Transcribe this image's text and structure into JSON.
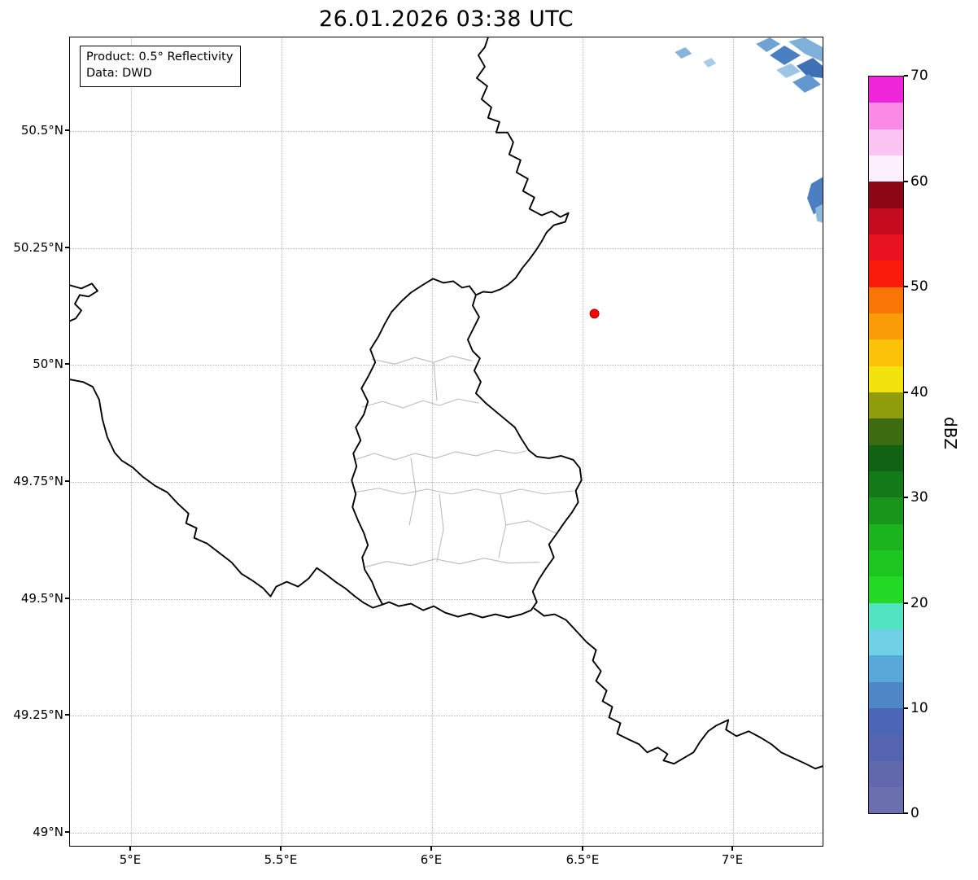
{
  "title": "26.01.2026 03:38 UTC",
  "annotation_box": {
    "product_line": "Product: 0.5° Reflectivity",
    "data_line": "Data: DWD"
  },
  "axes": {
    "x_tick_labels": [
      "5°E",
      "5.5°E",
      "6°E",
      "6.5°E",
      "7°E"
    ],
    "y_tick_labels": [
      "50.5°N",
      "50.25°N",
      "50°N",
      "49.75°N",
      "49.5°N",
      "49.25°N",
      "49°N"
    ]
  },
  "colorbar": {
    "label": "dBZ",
    "tick_labels_top_to_bottom": [
      "70",
      "60",
      "50",
      "40",
      "30",
      "20",
      "10",
      "0"
    ],
    "value_min": 0,
    "value_max": 70,
    "band_colors_bottom_to_top": [
      "#6b6fae",
      "#6168ab",
      "#5564ae",
      "#4b66b6",
      "#4e86c6",
      "#58a8da",
      "#6fd0e6",
      "#52e4c0",
      "#23d926",
      "#1ec622",
      "#1bb41e",
      "#18961b",
      "#147a17",
      "#106313",
      "#3d6c10",
      "#8f9c0c",
      "#f2e30c",
      "#fcc20a",
      "#fa9b08",
      "#f87506",
      "#fa1b0c",
      "#e81220",
      "#c40c1e",
      "#8c0616",
      "#fdeffc",
      "#fcc4f2",
      "#fb8ae6",
      "#ee25d8"
    ]
  },
  "map": {
    "national_border_color": "#000000",
    "canton_border_color": "#bcbcbc",
    "grid_color": "#b4b4b4",
    "marker_color": "#ff0000",
    "echo_palette": [
      "#3f6fb5",
      "#4a7fc0",
      "#5b93cc",
      "#6fa3d4",
      "#86b4dc",
      "#9cc4e4"
    ]
  },
  "chart_data": {
    "type": "heatmap",
    "title": "26.01.2026 03:38 UTC",
    "product": "0.5° Reflectivity",
    "data_source": "DWD",
    "x_axis": {
      "tick_labels": [
        "5°E",
        "5.5°E",
        "6°E",
        "6.5°E",
        "7°E"
      ],
      "approx_range_lon_e": [
        4.8,
        7.3
      ]
    },
    "y_axis": {
      "tick_labels": [
        "49°N",
        "49.25°N",
        "49.5°N",
        "49.75°N",
        "50°N",
        "50.25°N",
        "50.5°N"
      ],
      "approx_range_lat_n": [
        48.97,
        50.7
      ]
    },
    "colorbar": {
      "label": "dBZ",
      "range": [
        0,
        70
      ],
      "tick_step": 10,
      "n_bands": 28
    },
    "radar_site_marker": {
      "approx_lon_e": 6.54,
      "approx_lat_n": 50.11,
      "color": "red"
    },
    "echo_regions": [
      {
        "location": "northeast corner of map, ~6.8–7.3°E / 50.55–50.7°N",
        "approx_intensity_dbz": [
          0,
          15
        ],
        "appearance": "scattered blue diagonal streaks"
      },
      {
        "location": "east edge, ~7.25–7.3°E / 50.28–50.35°N",
        "approx_intensity_dbz": [
          0,
          12
        ],
        "appearance": "small blue streak"
      }
    ],
    "map_features": [
      "national borders of Belgium, Germany, France and Luxembourg (black lines)",
      "Luxembourg canton borders (light gray lines)"
    ],
    "grid": "dotted"
  }
}
